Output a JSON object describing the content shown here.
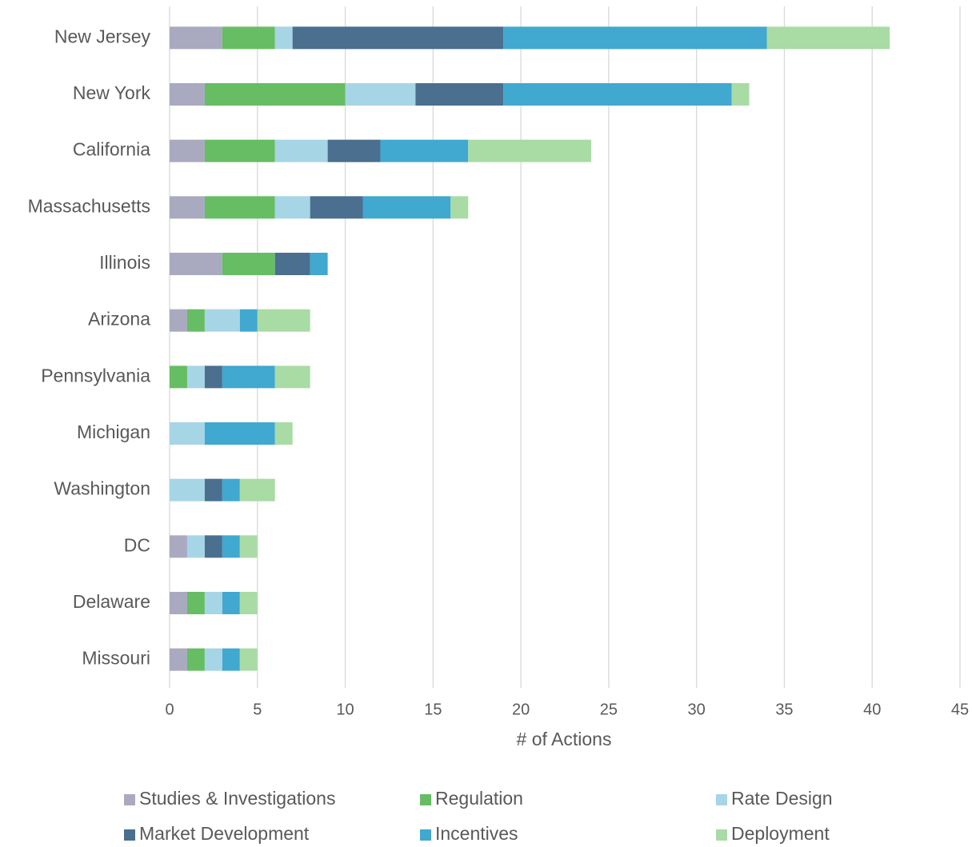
{
  "chart_data": {
    "type": "stacked-bar-horizontal",
    "xlabel": "# of Actions",
    "categories": [
      "New Jersey",
      "New York",
      "California",
      "Massachusetts",
      "Illinois",
      "Arizona",
      "Pennsylvania",
      "Michigan",
      "Washington",
      "DC",
      "Delaware",
      "Missouri"
    ],
    "series": [
      {
        "name": "Studies & Investigations",
        "color": "#a9a9c0",
        "values": [
          3,
          2,
          2,
          2,
          3,
          1,
          0,
          0,
          0,
          1,
          1,
          1
        ]
      },
      {
        "name": "Regulation",
        "color": "#66bd63",
        "values": [
          3,
          8,
          4,
          4,
          3,
          1,
          1,
          0,
          0,
          0,
          1,
          1
        ]
      },
      {
        "name": "Rate Design",
        "color": "#a6d5e6",
        "values": [
          1,
          4,
          3,
          2,
          0,
          2,
          1,
          2,
          2,
          1,
          1,
          1
        ]
      },
      {
        "name": "Market Development",
        "color": "#4a6f8f",
        "values": [
          12,
          5,
          3,
          3,
          2,
          0,
          1,
          0,
          1,
          1,
          0,
          0
        ]
      },
      {
        "name": "Incentives",
        "color": "#41a8d0",
        "values": [
          15,
          13,
          5,
          5,
          1,
          1,
          3,
          4,
          1,
          1,
          1,
          1
        ]
      },
      {
        "name": "Deployment",
        "color": "#a9dba5",
        "values": [
          7,
          1,
          7,
          1,
          0,
          3,
          2,
          1,
          2,
          1,
          1,
          1
        ]
      }
    ],
    "xlim": [
      0,
      45
    ],
    "xticks": [
      0,
      5,
      10,
      15,
      20,
      25,
      30,
      35,
      40,
      45
    ],
    "grid": true
  }
}
